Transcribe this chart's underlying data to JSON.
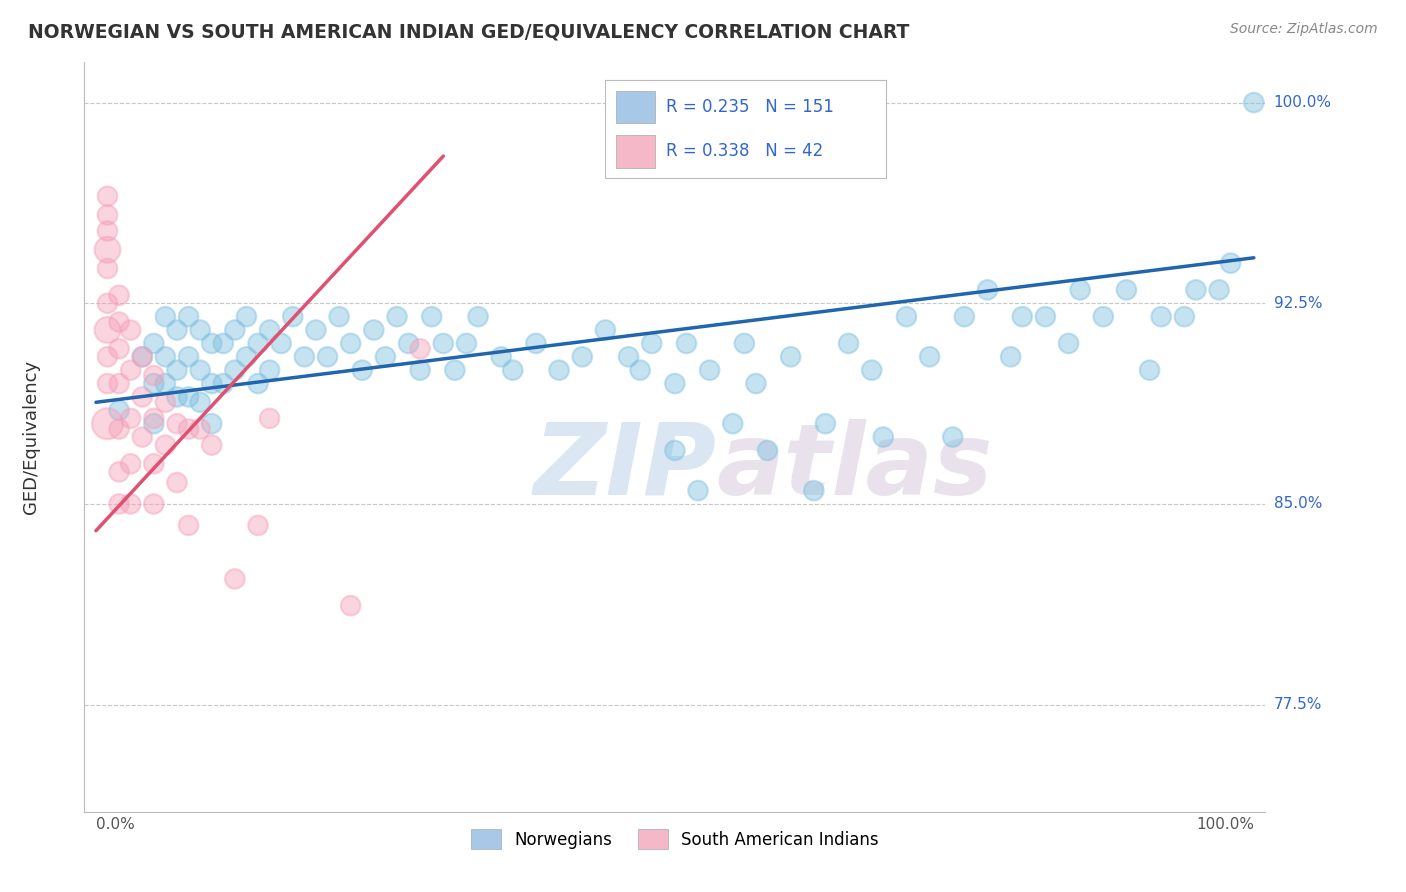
{
  "title": "NORWEGIAN VS SOUTH AMERICAN INDIAN GED/EQUIVALENCY CORRELATION CHART",
  "source": "Source: ZipAtlas.com",
  "ylabel": "GED/Equivalency",
  "legend_norwegian": {
    "R": 0.235,
    "N": 151,
    "color": "#a8c8e8"
  },
  "legend_sai": {
    "R": 0.338,
    "N": 42,
    "color": "#f4b8c8"
  },
  "blue_color": "#7fbfdf",
  "pink_color": "#f4a0b8",
  "blue_line_color": "#2166ac",
  "pink_line_color": "#e05070",
  "right_label_color": "#3366cc",
  "ylim": [
    0.735,
    1.015
  ],
  "xlim": [
    -0.01,
    1.01
  ],
  "watermark_zip": "ZIP",
  "watermark_atlas": "atlas",
  "background_color": "#ffffff",
  "grid_color": "#c8c8c8",
  "title_color": "#333333",
  "ytick_vals": [
    0.775,
    0.85,
    0.925,
    1.0
  ],
  "ytick_labels": [
    "77.5%",
    "85.0%",
    "92.5%",
    "100.0%"
  ],
  "blue_trend": {
    "x_start": 0.0,
    "x_end": 1.0,
    "y_start": 0.888,
    "y_end": 0.942
  },
  "pink_trend": {
    "x_start": 0.0,
    "x_end": 0.3,
    "y_start": 0.84,
    "y_end": 0.98
  },
  "blue_scatter_x": [
    0.02,
    0.04,
    0.05,
    0.05,
    0.05,
    0.06,
    0.06,
    0.06,
    0.07,
    0.07,
    0.07,
    0.08,
    0.08,
    0.08,
    0.09,
    0.09,
    0.09,
    0.1,
    0.1,
    0.1,
    0.11,
    0.11,
    0.12,
    0.12,
    0.13,
    0.13,
    0.14,
    0.14,
    0.15,
    0.15,
    0.16,
    0.17,
    0.18,
    0.19,
    0.2,
    0.21,
    0.22,
    0.23,
    0.24,
    0.25,
    0.26,
    0.27,
    0.28,
    0.29,
    0.3,
    0.31,
    0.32,
    0.33,
    0.35,
    0.36,
    0.38,
    0.4,
    0.42,
    0.44,
    0.46,
    0.47,
    0.48,
    0.5,
    0.5,
    0.51,
    0.52,
    0.53,
    0.55,
    0.56,
    0.57,
    0.58,
    0.6,
    0.62,
    0.63,
    0.65,
    0.67,
    0.68,
    0.7,
    0.72,
    0.74,
    0.75,
    0.77,
    0.79,
    0.8,
    0.82,
    0.84,
    0.85,
    0.87,
    0.89,
    0.91,
    0.92,
    0.94,
    0.95,
    0.97,
    0.98,
    1.0
  ],
  "blue_scatter_y": [
    0.885,
    0.905,
    0.91,
    0.895,
    0.88,
    0.92,
    0.905,
    0.895,
    0.915,
    0.9,
    0.89,
    0.92,
    0.905,
    0.89,
    0.915,
    0.9,
    0.888,
    0.91,
    0.895,
    0.88,
    0.91,
    0.895,
    0.915,
    0.9,
    0.92,
    0.905,
    0.91,
    0.895,
    0.915,
    0.9,
    0.91,
    0.92,
    0.905,
    0.915,
    0.905,
    0.92,
    0.91,
    0.9,
    0.915,
    0.905,
    0.92,
    0.91,
    0.9,
    0.92,
    0.91,
    0.9,
    0.91,
    0.92,
    0.905,
    0.9,
    0.91,
    0.9,
    0.905,
    0.915,
    0.905,
    0.9,
    0.91,
    0.87,
    0.895,
    0.91,
    0.855,
    0.9,
    0.88,
    0.91,
    0.895,
    0.87,
    0.905,
    0.855,
    0.88,
    0.91,
    0.9,
    0.875,
    0.92,
    0.905,
    0.875,
    0.92,
    0.93,
    0.905,
    0.92,
    0.92,
    0.91,
    0.93,
    0.92,
    0.93,
    0.9,
    0.92,
    0.92,
    0.93,
    0.93,
    0.94,
    1.0
  ],
  "blue_scatter_s": [
    200,
    200,
    200,
    200,
    200,
    200,
    200,
    200,
    200,
    200,
    200,
    200,
    200,
    200,
    200,
    200,
    200,
    200,
    200,
    200,
    200,
    200,
    200,
    200,
    200,
    200,
    200,
    200,
    200,
    200,
    200,
    200,
    200,
    200,
    200,
    200,
    200,
    200,
    200,
    200,
    200,
    200,
    200,
    200,
    200,
    200,
    200,
    200,
    200,
    200,
    200,
    200,
    200,
    200,
    200,
    200,
    200,
    200,
    200,
    200,
    200,
    200,
    200,
    200,
    200,
    200,
    200,
    200,
    200,
    200,
    200,
    200,
    200,
    200,
    200,
    200,
    200,
    200,
    200,
    200,
    200,
    200,
    200,
    200,
    200,
    200,
    200,
    200,
    200,
    200,
    200
  ],
  "pink_scatter_x": [
    0.01,
    0.01,
    0.01,
    0.01,
    0.01,
    0.01,
    0.01,
    0.01,
    0.01,
    0.02,
    0.02,
    0.02,
    0.02,
    0.02,
    0.02,
    0.02,
    0.03,
    0.03,
    0.03,
    0.03,
    0.03,
    0.04,
    0.04,
    0.04,
    0.05,
    0.05,
    0.05,
    0.05,
    0.06,
    0.06,
    0.07,
    0.07,
    0.08,
    0.08,
    0.09,
    0.1,
    0.12,
    0.14,
    0.15,
    0.22,
    0.28,
    0.01
  ],
  "pink_scatter_y": [
    0.965,
    0.958,
    0.952,
    0.945,
    0.938,
    0.925,
    0.915,
    0.905,
    0.895,
    0.928,
    0.918,
    0.908,
    0.895,
    0.878,
    0.862,
    0.85,
    0.915,
    0.9,
    0.882,
    0.865,
    0.85,
    0.905,
    0.89,
    0.875,
    0.898,
    0.882,
    0.865,
    0.85,
    0.888,
    0.872,
    0.88,
    0.858,
    0.878,
    0.842,
    0.878,
    0.872,
    0.822,
    0.842,
    0.882,
    0.812,
    0.908,
    0.88
  ],
  "pink_scatter_s": [
    200,
    200,
    200,
    350,
    200,
    200,
    350,
    200,
    200,
    200,
    200,
    200,
    200,
    200,
    200,
    200,
    200,
    200,
    200,
    200,
    200,
    200,
    200,
    200,
    200,
    200,
    200,
    200,
    200,
    200,
    200,
    200,
    200,
    200,
    200,
    200,
    200,
    200,
    200,
    200,
    200,
    500
  ]
}
